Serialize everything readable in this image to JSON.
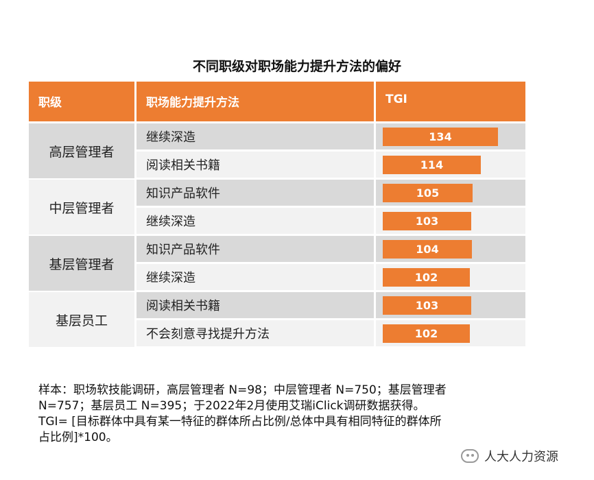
{
  "title": "不同职级对职场能力提升方法的偏好",
  "headers": {
    "level": "职级",
    "method": "职场能力提升方法",
    "tgi": "TGI"
  },
  "chart_data": {
    "type": "bar",
    "title": "不同职级对职场能力提升方法的偏好",
    "rows": [
      {
        "level": "高层管理者",
        "method": "继续深造",
        "value": 134
      },
      {
        "level": "高层管理者",
        "method": "阅读相关书籍",
        "value": 114
      },
      {
        "level": "中层管理者",
        "method": "知识产品软件",
        "value": 105
      },
      {
        "level": "中层管理者",
        "method": "继续深造",
        "value": 103
      },
      {
        "level": "基层管理者",
        "method": "知识产品软件",
        "value": 104
      },
      {
        "level": "基层管理者",
        "method": "继续深造",
        "value": 102
      },
      {
        "level": "基层员工",
        "method": "阅读相关书籍",
        "value": 103
      },
      {
        "level": "基层员工",
        "method": "不会刻意寻找提升方法",
        "value": 102
      }
    ],
    "groups": [
      "高层管理者",
      "中层管理者",
      "基层管理者",
      "基层员工"
    ],
    "xlabel": "",
    "ylabel": "TGI"
  },
  "notes": {
    "sample_line1": "样本：职场软技能调研，高层管理者  N=98；中层管理者  N=750；基层管理者",
    "sample_line2": "N=757；基层员工  N=395；于2022年2月使用艾瑞iClick调研数据获得。",
    "tgi_line1": "TGI=  [目标群体中具有某一特征的群体所占比例/总体中具有相同特征的群体所",
    "tgi_line2": "占比例]*100。"
  },
  "watermark": "人大人力资源",
  "colors": {
    "accent": "#ED7D31",
    "shade": "#D9D9D9",
    "light": "#F2F2F2"
  }
}
